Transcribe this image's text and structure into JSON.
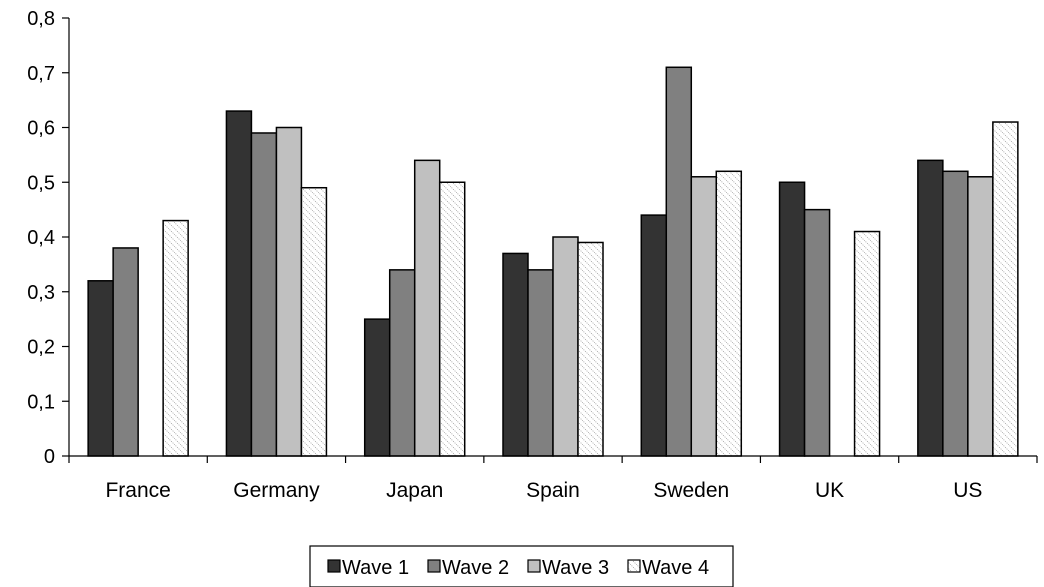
{
  "chart_data": {
    "type": "bar",
    "categories": [
      "France",
      "Germany",
      "Japan",
      "Spain",
      "Sweden",
      "UK",
      "US"
    ],
    "series": [
      {
        "name": "Wave 1",
        "values": [
          0.32,
          0.63,
          0.25,
          0.37,
          0.44,
          0.5,
          0.54
        ],
        "color": "#333333"
      },
      {
        "name": "Wave 2",
        "values": [
          0.38,
          0.59,
          0.34,
          0.34,
          0.71,
          0.45,
          0.52
        ],
        "color": "#808080"
      },
      {
        "name": "Wave 3",
        "values": [
          null,
          0.6,
          0.54,
          0.4,
          0.51,
          null,
          0.51
        ],
        "color": "#c0c0c0"
      },
      {
        "name": "Wave 4",
        "values": [
          0.43,
          0.49,
          0.5,
          0.39,
          0.52,
          0.41,
          0.61
        ],
        "color": "#ffffff",
        "pattern": "dotted-diagonal"
      }
    ],
    "y_ticks": [
      "0",
      "0,1",
      "0,2",
      "0,3",
      "0,4",
      "0,5",
      "0,6",
      "0,7",
      "0,8"
    ],
    "ylim": [
      0,
      0.8
    ],
    "title": "",
    "xlabel": "",
    "ylabel": "",
    "grid": false,
    "legend_position": "bottom-center"
  }
}
